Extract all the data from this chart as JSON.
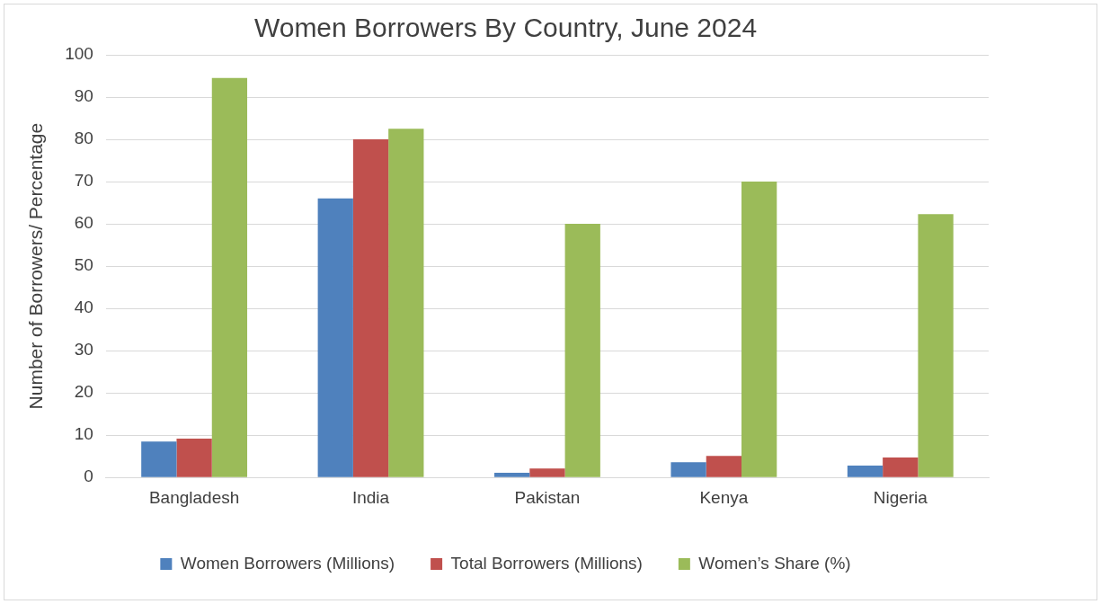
{
  "chart_data": {
    "type": "bar",
    "title": "Women Borrowers By Country, June 2024",
    "ylabel": "Number of Borrowers/ Percentage",
    "categories": [
      "Bangladesh",
      "India",
      "Pakistan",
      "Kenya",
      "Nigeria"
    ],
    "series": [
      {
        "name": "Women Borrowers (Millions)",
        "color": "#4f81bd",
        "values": [
          8.5,
          66,
          1.1,
          3.6,
          2.8
        ]
      },
      {
        "name": "Total Borrowers (Millions)",
        "color": "#c0504d",
        "values": [
          9.2,
          80,
          2.1,
          5.1,
          4.7
        ]
      },
      {
        "name": "Women’s Share (%)",
        "color": "#9bbb59",
        "values": [
          94.5,
          82.5,
          60,
          70,
          62.3
        ]
      }
    ],
    "ylim": [
      0,
      100
    ],
    "yticks": [
      0,
      10,
      20,
      30,
      40,
      50,
      60,
      70,
      80,
      90,
      100
    ],
    "grid": "y",
    "legend": "bottom"
  }
}
